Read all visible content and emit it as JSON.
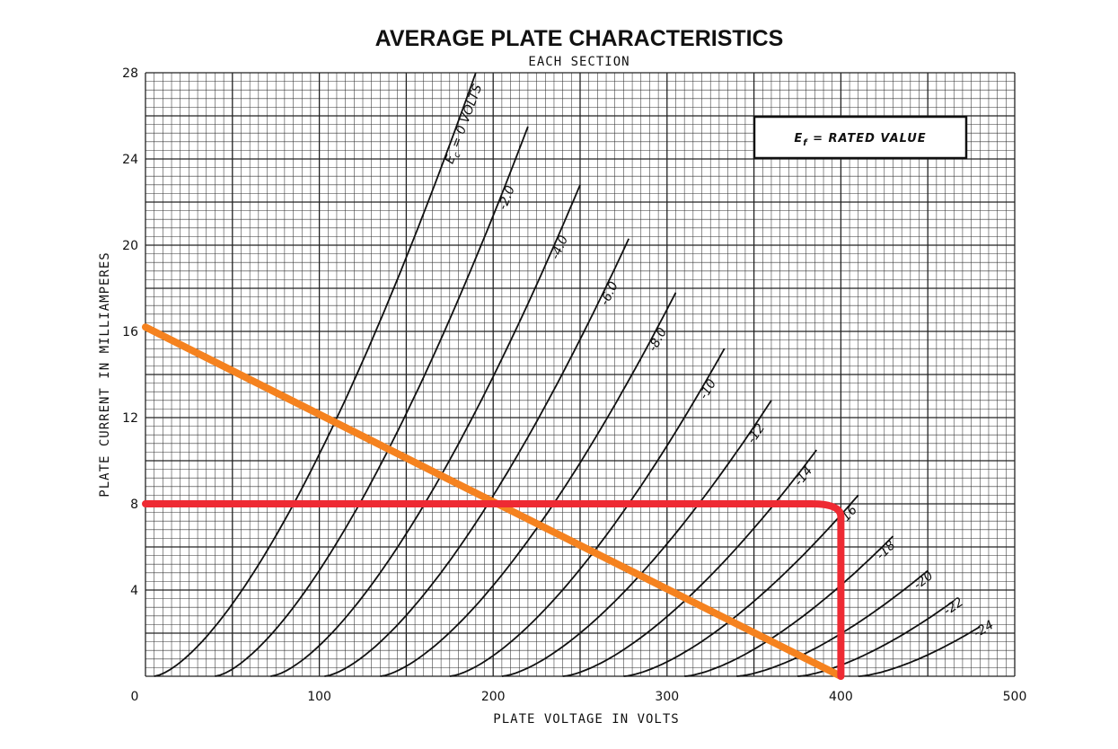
{
  "chart_data": {
    "type": "line",
    "title": "AVERAGE PLATE CHARACTERISTICS",
    "subtitle": "EACH SECTION",
    "xlabel": "PLATE VOLTAGE IN VOLTS",
    "ylabel": "PLATE CURRENT IN MILLIAMPERES",
    "xlim": [
      0,
      500
    ],
    "ylim": [
      0,
      28
    ],
    "x_ticks": [
      "0",
      "100",
      "200",
      "300",
      "400",
      "500"
    ],
    "y_ticks": [
      "4",
      "8",
      "12",
      "16",
      "20",
      "24",
      "28"
    ],
    "grid": true,
    "note": "E",
    "note_sub": "f",
    "note_rest": " = RATED VALUE",
    "grid_label_prefix": "E",
    "grid_label_sub": "c",
    "grid_label_rest": " = 0 VOLTS",
    "series": [
      {
        "label": "",
        "v0": 5,
        "v1": 190
      },
      {
        "label": "-2.0",
        "v0": 40,
        "v1": 220
      },
      {
        "label": "-4.0",
        "v0": 72,
        "v1": 250
      },
      {
        "label": "-6.0",
        "v0": 103,
        "v1": 278
      },
      {
        "label": "-8.0",
        "v0": 135,
        "v1": 305
      },
      {
        "label": "-10",
        "v0": 175,
        "v1": 333
      },
      {
        "label": "-12",
        "v0": 205,
        "v1": 360
      },
      {
        "label": "-14",
        "v0": 240,
        "v1": 386
      },
      {
        "label": "-16",
        "v0": 275,
        "v1": 410
      },
      {
        "label": "-18",
        "v0": 310,
        "v1": 430
      },
      {
        "label": "-20",
        "v0": 340,
        "v1": 450
      },
      {
        "label": "-22",
        "v0": 375,
        "v1": 465
      },
      {
        "label": "-24",
        "v0": 410,
        "v1": 480
      }
    ],
    "curve_ends": [
      {
        "x": 190,
        "y": 28
      },
      {
        "x": 220,
        "y": 25.5
      },
      {
        "x": 250,
        "y": 22.8
      },
      {
        "x": 278,
        "y": 20.3
      },
      {
        "x": 305,
        "y": 17.8
      },
      {
        "x": 333,
        "y": 15.2
      },
      {
        "x": 360,
        "y": 12.8
      },
      {
        "x": 386,
        "y": 10.5
      },
      {
        "x": 410,
        "y": 8.4
      },
      {
        "x": 430,
        "y": 6.5
      },
      {
        "x": 450,
        "y": 4.9
      },
      {
        "x": 465,
        "y": 3.5
      },
      {
        "x": 480,
        "y": 2.3
      }
    ],
    "load_line": {
      "color": "#f5821f",
      "points": [
        [
          0,
          16.2
        ],
        [
          400,
          0
        ]
      ]
    },
    "operating_line": {
      "color": "#ee2a33",
      "points": [
        [
          0,
          8
        ],
        [
          383,
          8
        ],
        [
          400,
          7.4
        ],
        [
          400,
          0
        ]
      ]
    }
  }
}
